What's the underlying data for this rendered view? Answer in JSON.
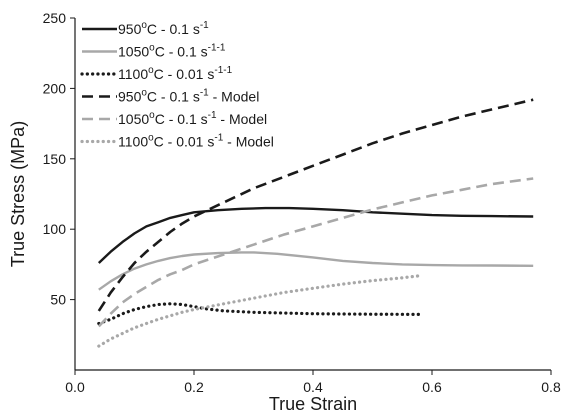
{
  "chart_data": {
    "type": "line",
    "xlabel": "True Strain",
    "ylabel": "True Stress (MPa)",
    "xlim": [
      0,
      0.8
    ],
    "ylim": [
      0,
      250
    ],
    "xticks": [
      "0.0",
      "0.2",
      "0.4",
      "0.6",
      "0.8"
    ],
    "yticks": [
      "50",
      "100",
      "150",
      "200",
      "250"
    ],
    "grid": false,
    "legend_position": "top-left",
    "series": [
      {
        "name": "950°C - 0.1 s-1",
        "legend": {
          "pre": "950",
          "sup1": "o",
          "mid": "C - 0.1 s",
          "sup2": "-1",
          "post": ""
        },
        "color": "#1a1a1a",
        "dash": "solid",
        "points": [
          [
            0.04,
            76
          ],
          [
            0.06,
            84
          ],
          [
            0.08,
            91
          ],
          [
            0.1,
            97
          ],
          [
            0.12,
            102
          ],
          [
            0.14,
            105
          ],
          [
            0.16,
            108
          ],
          [
            0.18,
            110
          ],
          [
            0.2,
            112
          ],
          [
            0.24,
            113.5
          ],
          [
            0.28,
            114.5
          ],
          [
            0.32,
            115
          ],
          [
            0.36,
            115
          ],
          [
            0.4,
            114.5
          ],
          [
            0.45,
            113.5
          ],
          [
            0.5,
            112
          ],
          [
            0.55,
            111
          ],
          [
            0.6,
            110
          ],
          [
            0.65,
            109.5
          ],
          [
            0.7,
            109.3
          ],
          [
            0.77,
            109
          ]
        ]
      },
      {
        "name": "1050°C - 0.1 s-1-1",
        "legend": {
          "pre": "1050",
          "sup1": "o",
          "mid": "C - 0.1 s",
          "sup2": "-1-1",
          "post": ""
        },
        "color": "#a8a8a8",
        "dash": "solid",
        "points": [
          [
            0.04,
            57
          ],
          [
            0.06,
            63
          ],
          [
            0.08,
            68
          ],
          [
            0.1,
            72
          ],
          [
            0.12,
            75
          ],
          [
            0.14,
            77.5
          ],
          [
            0.16,
            79.5
          ],
          [
            0.18,
            81
          ],
          [
            0.2,
            82
          ],
          [
            0.24,
            83
          ],
          [
            0.28,
            83.5
          ],
          [
            0.3,
            83.5
          ],
          [
            0.34,
            82.5
          ],
          [
            0.4,
            80
          ],
          [
            0.45,
            77.5
          ],
          [
            0.5,
            76
          ],
          [
            0.55,
            75
          ],
          [
            0.6,
            74.5
          ],
          [
            0.65,
            74.3
          ],
          [
            0.7,
            74.2
          ],
          [
            0.77,
            74
          ]
        ]
      },
      {
        "name": "1100°C - 0.01 s-1-1",
        "legend": {
          "pre": "1100",
          "sup1": "o",
          "mid": "C - 0.01 s",
          "sup2": "-1-1",
          "post": ""
        },
        "color": "#1a1a1a",
        "dash": "dotted",
        "points": [
          [
            0.04,
            33
          ],
          [
            0.06,
            36
          ],
          [
            0.08,
            40
          ],
          [
            0.1,
            43
          ],
          [
            0.12,
            45
          ],
          [
            0.14,
            46.5
          ],
          [
            0.16,
            47
          ],
          [
            0.18,
            46.5
          ],
          [
            0.2,
            45
          ],
          [
            0.22,
            43.5
          ],
          [
            0.25,
            42
          ],
          [
            0.3,
            41
          ],
          [
            0.35,
            40.5
          ],
          [
            0.4,
            40
          ],
          [
            0.45,
            39.8
          ],
          [
            0.5,
            39.6
          ],
          [
            0.58,
            39.5
          ]
        ]
      },
      {
        "name": "950°C - 0.1 s-1 - Model",
        "legend": {
          "pre": "950",
          "sup1": "o",
          "mid": "C - 0.1 s",
          "sup2": "-1",
          "post": " - Model"
        },
        "color": "#1a1a1a",
        "dash": "dashed",
        "points": [
          [
            0.04,
            42
          ],
          [
            0.06,
            55
          ],
          [
            0.08,
            66
          ],
          [
            0.1,
            76
          ],
          [
            0.12,
            84
          ],
          [
            0.14,
            91
          ],
          [
            0.16,
            98
          ],
          [
            0.18,
            104
          ],
          [
            0.2,
            109
          ],
          [
            0.25,
            119
          ],
          [
            0.3,
            129
          ],
          [
            0.35,
            137
          ],
          [
            0.4,
            145
          ],
          [
            0.45,
            153
          ],
          [
            0.5,
            161
          ],
          [
            0.55,
            168
          ],
          [
            0.6,
            174
          ],
          [
            0.65,
            180
          ],
          [
            0.7,
            185
          ],
          [
            0.77,
            192
          ]
        ]
      },
      {
        "name": "1050°C - 0.1 s-1 - Model",
        "legend": {
          "pre": "1050",
          "sup1": "o",
          "mid": "C - 0.1 s",
          "sup2": "-1",
          "post": " - Model"
        },
        "color": "#a8a8a8",
        "dash": "dashed",
        "points": [
          [
            0.04,
            31
          ],
          [
            0.06,
            40
          ],
          [
            0.08,
            48
          ],
          [
            0.1,
            54
          ],
          [
            0.12,
            59
          ],
          [
            0.14,
            64
          ],
          [
            0.16,
            68
          ],
          [
            0.18,
            71
          ],
          [
            0.2,
            75
          ],
          [
            0.25,
            82
          ],
          [
            0.3,
            89
          ],
          [
            0.35,
            96
          ],
          [
            0.4,
            102
          ],
          [
            0.45,
            108
          ],
          [
            0.5,
            114
          ],
          [
            0.55,
            119
          ],
          [
            0.6,
            124
          ],
          [
            0.65,
            128
          ],
          [
            0.7,
            132
          ],
          [
            0.77,
            136
          ]
        ]
      },
      {
        "name": "1100°C - 0.01 s-1 - Model",
        "legend": {
          "pre": "1100",
          "sup1": "o",
          "mid": "C - 0.01 s",
          "sup2": "-1",
          "post": " - Model"
        },
        "color": "#a8a8a8",
        "dash": "dotted",
        "points": [
          [
            0.04,
            17
          ],
          [
            0.06,
            22
          ],
          [
            0.08,
            26
          ],
          [
            0.1,
            30
          ],
          [
            0.12,
            33
          ],
          [
            0.14,
            36
          ],
          [
            0.16,
            38.5
          ],
          [
            0.18,
            41
          ],
          [
            0.2,
            43
          ],
          [
            0.25,
            47
          ],
          [
            0.3,
            51
          ],
          [
            0.35,
            55
          ],
          [
            0.4,
            58
          ],
          [
            0.45,
            61
          ],
          [
            0.5,
            63.5
          ],
          [
            0.55,
            65.5
          ],
          [
            0.58,
            67
          ]
        ]
      }
    ]
  }
}
